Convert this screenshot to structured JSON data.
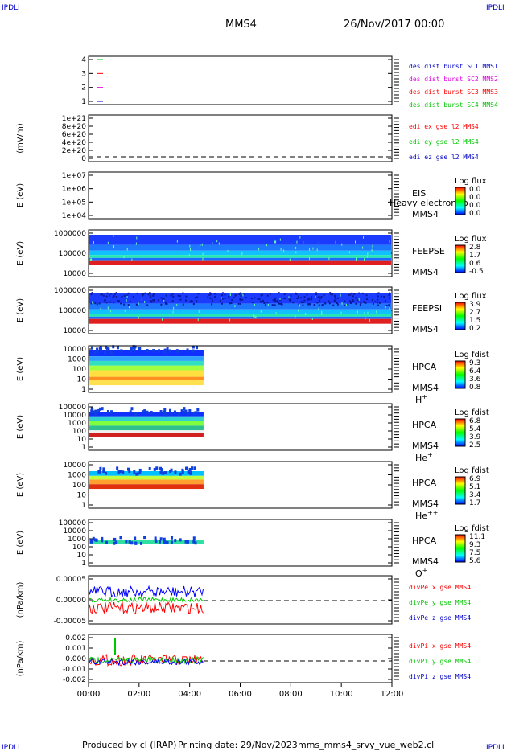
{
  "corner_labels": {
    "top_left": "IPDLI",
    "top_right": "IPDLI",
    "bottom_left": "IPDLI",
    "bottom_right": "IPDLI"
  },
  "header": {
    "spacecraft": "MMS4",
    "date": "26/Nov/2017 00:00"
  },
  "footer": {
    "produced": "Produced by cl (IRAP)",
    "printed": "Printing date: 29/Nov/2023",
    "file": "mms_mms4_srvy_vue_web2.cl"
  },
  "colors": {
    "red": "#ff0000",
    "green": "#00c800",
    "blue": "#0000c8",
    "magenta": "#e000e0",
    "dashed": "#000000"
  },
  "chart_data": {
    "type": "line",
    "x_axis": {
      "ticks": [
        "00:00",
        "02:00",
        "04:00",
        "06:00",
        "08:00",
        "10:00",
        "12:00"
      ],
      "range_hours": [
        0,
        12
      ],
      "data_end_hours": 4.55
    },
    "panels": [
      {
        "id": "des-burst",
        "type": "line",
        "ylabel": "",
        "yticks": [
          "4",
          "3",
          "2",
          "1"
        ],
        "legend": [
          {
            "text": "des dist burst SC1 MMS1",
            "color": "#0000c8"
          },
          {
            "text": "des dist burst SC2 MMS2",
            "color": "#e000e0"
          },
          {
            "text": "des dist burst SC3 MMS3",
            "color": "#ff0000"
          },
          {
            "text": "des dist burst SC4 MMS4",
            "color": "#00c800"
          }
        ]
      },
      {
        "id": "edi",
        "type": "line",
        "ylabel": "(mV/m)",
        "yticks": [
          "1e+21",
          "8e+20",
          "6e+20",
          "4e+20",
          "2e+20",
          "0"
        ],
        "legend": [
          {
            "text": "edi ex gse l2 MMS4",
            "color": "#ff0000"
          },
          {
            "text": "edi ey gse l2 MMS4",
            "color": "#00c800"
          },
          {
            "text": "edi ez gse l2 MMS4",
            "color": "#0000c8"
          }
        ]
      },
      {
        "id": "eis",
        "type": "heatmap",
        "ylabel": "E (eV)",
        "yticks": [
          "1e+07",
          "1e+06",
          "1e+05",
          "1e+04"
        ],
        "instrument": "EIS",
        "spacecraft": "MMS4",
        "overlay": "Heavy electron to",
        "cbar_title": "Log flux",
        "cbar_ticks": [
          "0.0",
          "0.0",
          "0.0",
          "0.0"
        ]
      },
      {
        "id": "feepse",
        "type": "heatmap",
        "ylabel": "E (eV)",
        "yticks": [
          "1000000",
          "100000",
          "10000"
        ],
        "instrument": "FEEPSE",
        "spacecraft": "MMS4",
        "cbar_title": "Log flux",
        "cbar_ticks": [
          "2.8",
          "1.7",
          "0.6",
          "-0.5"
        ]
      },
      {
        "id": "feepsi",
        "type": "heatmap",
        "ylabel": "E (eV)",
        "yticks": [
          "1000000",
          "100000",
          "10000"
        ],
        "instrument": "FEEPSI",
        "spacecraft": "MMS4",
        "cbar_title": "Log flux",
        "cbar_ticks": [
          "3.9",
          "2.7",
          "1.5",
          "0.2"
        ]
      },
      {
        "id": "hpca-h",
        "type": "heatmap",
        "ylabel": "E (eV)",
        "yticks": [
          "10000",
          "1000",
          "100",
          "10",
          "1"
        ],
        "instrument": "HPCA",
        "spacecraft": "MMS4",
        "species": "H",
        "charge": "+",
        "cbar_title": "Log fdist",
        "cbar_ticks": [
          "9.3",
          "6.4",
          "3.6",
          "0.8"
        ]
      },
      {
        "id": "hpca-he",
        "type": "heatmap",
        "ylabel": "E (eV)",
        "yticks": [
          "100000",
          "10000",
          "1000",
          "100",
          "10",
          "1"
        ],
        "instrument": "HPCA",
        "spacecraft": "MMS4",
        "species": "He",
        "charge": "+",
        "cbar_title": "Log fdist",
        "cbar_ticks": [
          "6.8",
          "5.4",
          "3.9",
          "2.5"
        ]
      },
      {
        "id": "hpca-he2",
        "type": "heatmap",
        "ylabel": "E (eV)",
        "yticks": [
          "10000",
          "1000",
          "100",
          "10",
          "1"
        ],
        "instrument": "HPCA",
        "spacecraft": "MMS4",
        "species": "He",
        "charge": "++",
        "cbar_title": "Log fdist",
        "cbar_ticks": [
          "6.9",
          "5.1",
          "3.4",
          "1.7"
        ]
      },
      {
        "id": "hpca-o",
        "type": "heatmap",
        "ylabel": "E (eV)",
        "yticks": [
          "100000",
          "10000",
          "1000",
          "100",
          "10",
          "1"
        ],
        "instrument": "HPCA",
        "spacecraft": "MMS4",
        "species": "O",
        "charge": "+",
        "cbar_title": "Log fdist",
        "cbar_ticks": [
          "11.1",
          "9.3",
          "7.5",
          "5.6"
        ]
      },
      {
        "id": "divpe",
        "type": "line",
        "ylabel": "(nPa/km)",
        "yticks": [
          "0.00005",
          "0.00000",
          "-0.00005"
        ],
        "legend": [
          {
            "text": "divPe x gse MMS4",
            "color": "#ff0000"
          },
          {
            "text": "divPe y gse MMS4",
            "color": "#00c800"
          },
          {
            "text": "divPe z gse MMS4",
            "color": "#0000c8"
          }
        ]
      },
      {
        "id": "divpi",
        "type": "line",
        "ylabel": "(nPa/km)",
        "yticks": [
          "0.002",
          "0.001",
          "0.000",
          "-0.001",
          "-0.002"
        ],
        "legend": [
          {
            "text": "divPi x gse MMS4",
            "color": "#ff0000"
          },
          {
            "text": "divPi y gse MMS4",
            "color": "#00c800"
          },
          {
            "text": "divPi z gse MMS4",
            "color": "#0000c8"
          }
        ]
      }
    ]
  }
}
